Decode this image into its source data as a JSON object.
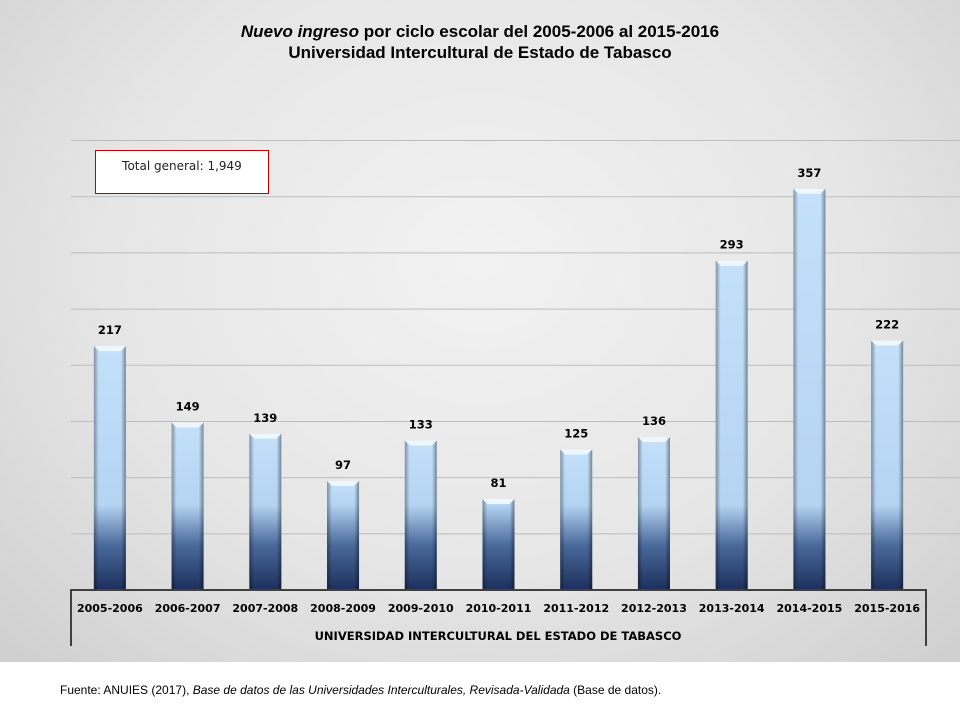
{
  "chart_data": {
    "type": "bar",
    "title_italic": "Nuevo ingreso",
    "title_rest": " por ciclo escolar del 2005-2006 al 2015-2016",
    "subtitle": "Universidad Intercultural de Estado de Tabasco",
    "categories": [
      "2005-2006",
      "2006-2007",
      "2007-2008",
      "2008-2009",
      "2009-2010",
      "2010-2011",
      "2011-2012",
      "2012-2013",
      "2013-2014",
      "2014-2015",
      "2015-2016"
    ],
    "values": [
      217,
      149,
      139,
      97,
      133,
      81,
      125,
      136,
      293,
      357,
      222
    ],
    "xlabel": "UNIVERSIDAD INTERCULTURAL DEL ESTADO DE TABASCO",
    "ylabel": "",
    "ylim": [
      0,
      400
    ],
    "ytick_step": 50,
    "grid": true,
    "annotation": "Total general: 1,949",
    "colors": {
      "bar_top": "#c4e0fa",
      "bar_bottom": "#1c2f5a",
      "annotation_border": "#c00000"
    }
  },
  "source": {
    "prefix": "Fuente: ANUIES (2017), ",
    "italic": "Base de datos de las Universidades  Interculturales, Revisada-Validada",
    "suffix": "  (Base de datos)."
  }
}
